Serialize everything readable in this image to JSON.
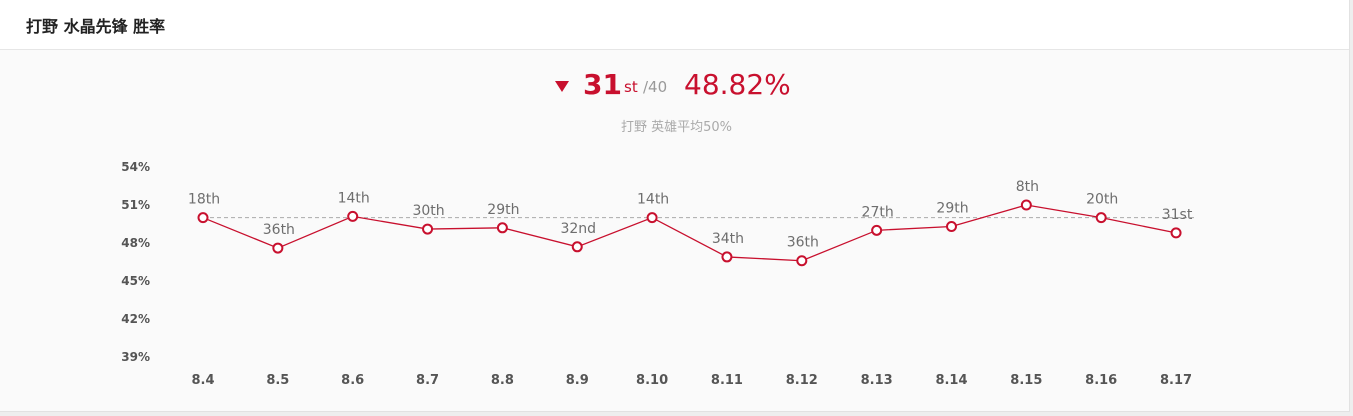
{
  "header": {
    "title": "打野 水晶先锋 胜率"
  },
  "summary": {
    "trend": "down",
    "rank": "31",
    "rank_suffix": "st",
    "rank_total": "/40",
    "win_rate": "48.82%",
    "average_note": "打野 英雄平均50%"
  },
  "colors": {
    "accent": "#c8102e",
    "reference_line": "#aaaaaa",
    "muted_text": "#6e6e6e"
  },
  "chart_data": {
    "type": "line",
    "title": "",
    "xlabel": "",
    "ylabel": "",
    "categories": [
      "8.4",
      "8.5",
      "8.6",
      "8.7",
      "8.8",
      "8.9",
      "8.10",
      "8.11",
      "8.12",
      "8.13",
      "8.14",
      "8.15",
      "8.16",
      "8.17"
    ],
    "y_tick_labels": [
      "54%",
      "51%",
      "48%",
      "45%",
      "42%",
      "39%"
    ],
    "y_ticks": [
      54,
      51,
      48,
      45,
      42,
      39
    ],
    "ylim": [
      39,
      54
    ],
    "reference_value": 50,
    "series": [
      {
        "values": [
          50.0,
          47.6,
          50.1,
          49.1,
          49.2,
          47.7,
          50.0,
          46.9,
          46.6,
          49.0,
          49.3,
          51.0,
          50.0,
          48.8
        ],
        "point_labels": [
          "18th",
          "36th",
          "14th",
          "30th",
          "29th",
          "32nd",
          "14th",
          "34th",
          "36th",
          "27th",
          "29th",
          "8th",
          "20th",
          "31st"
        ]
      }
    ],
    "grid": false,
    "legend": "none"
  }
}
